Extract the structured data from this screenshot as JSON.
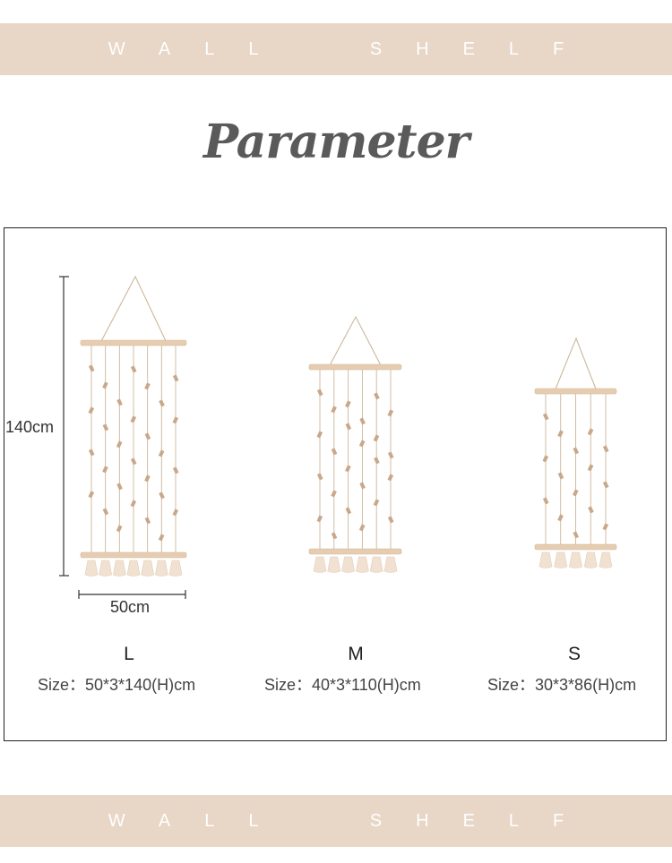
{
  "banner": {
    "text": "WALL  SHELF"
  },
  "title": "Parameter",
  "dimensions": {
    "height_label": "140cm",
    "width_label": "50cm"
  },
  "sizes": [
    {
      "letter": "L",
      "text": "Size：50*3*140(H)cm"
    },
    {
      "letter": "M",
      "text": "Size：40*3*110(H)cm"
    },
    {
      "letter": "S",
      "text": "Size：30*3*86(H)cm"
    }
  ],
  "colors": {
    "banner": "#e8d6c6",
    "wood": "#e6ccb0",
    "string": "#cdb79b",
    "tassel": "#f1e1d1",
    "clip": "#c9a88a"
  }
}
